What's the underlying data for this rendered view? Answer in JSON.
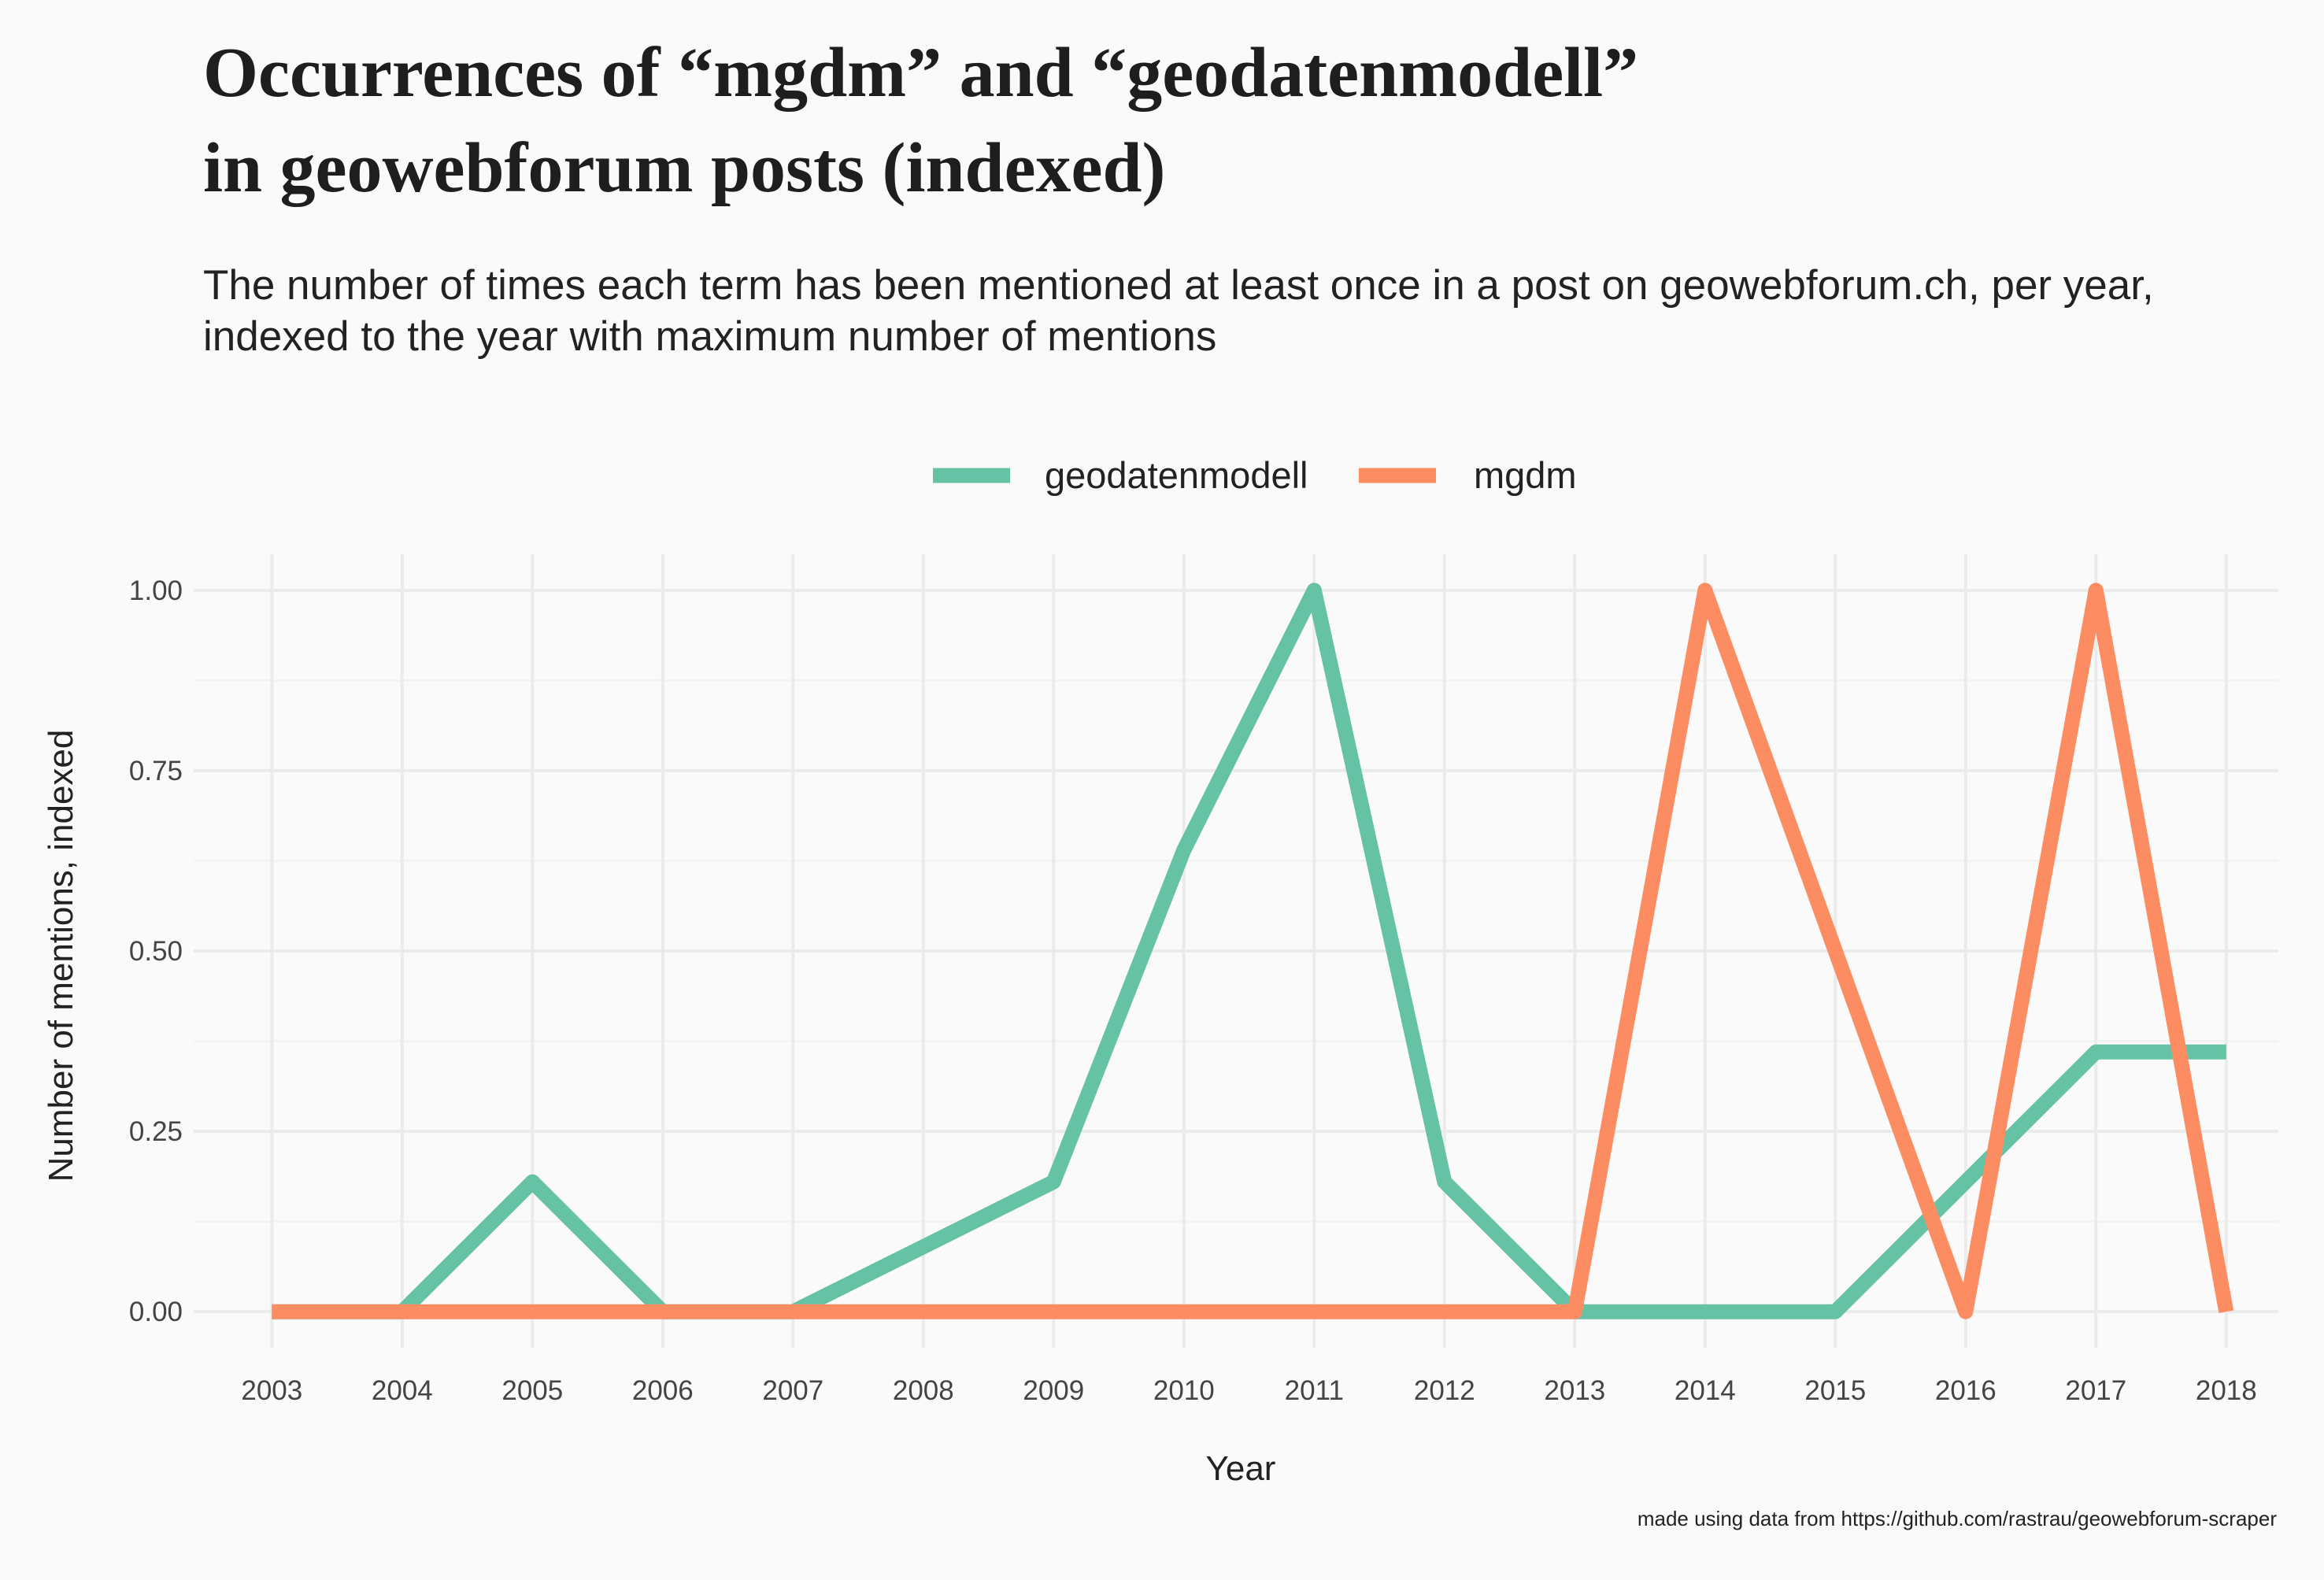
{
  "chart_data": {
    "type": "line",
    "title_lines": [
      "Occurrences of “mgdm” and “geodatenmodell”",
      "in geowebforum posts (indexed)"
    ],
    "subtitle_lines": [
      "The number of times each term has been mentioned at least once in a post on geowebforum.ch, per year,",
      "indexed to the year with maximum number of mentions"
    ],
    "xlabel": "Year",
    "ylabel": "Number of mentions, indexed",
    "caption": "made using data from https://github.com/rastrau/geowebforum-scraper",
    "x": [
      2003,
      2004,
      2005,
      2006,
      2007,
      2008,
      2009,
      2010,
      2011,
      2012,
      2013,
      2014,
      2015,
      2016,
      2017,
      2018
    ],
    "x_tick_labels": [
      "2003",
      "2004",
      "2005",
      "2006",
      "2007",
      "2008",
      "2009",
      "2010",
      "2011",
      "2012",
      "2013",
      "2014",
      "2015",
      "2016",
      "2017",
      "2018"
    ],
    "y_ticks": [
      0,
      0.25,
      0.5,
      0.75,
      1.0
    ],
    "y_tick_labels": [
      "0.00",
      "0.25",
      "0.50",
      "0.75",
      "1.00"
    ],
    "xlim": [
      2002.4,
      2018.4
    ],
    "ylim": [
      -0.05,
      1.05
    ],
    "grid": true,
    "legend_position": "top",
    "series": [
      {
        "name": "geodatenmodell",
        "color": "#66c2a5",
        "values": [
          0,
          0,
          0.18,
          0,
          0,
          0.09,
          0.18,
          0.64,
          1.0,
          0.18,
          0,
          0,
          0,
          0.18,
          0.36,
          0.36
        ]
      },
      {
        "name": "mgdm",
        "color": "#fc8d62",
        "values": [
          0,
          0,
          0,
          0,
          0,
          0,
          0,
          0,
          0,
          0,
          0,
          1.0,
          0.5,
          0,
          1.0,
          0
        ]
      }
    ]
  }
}
